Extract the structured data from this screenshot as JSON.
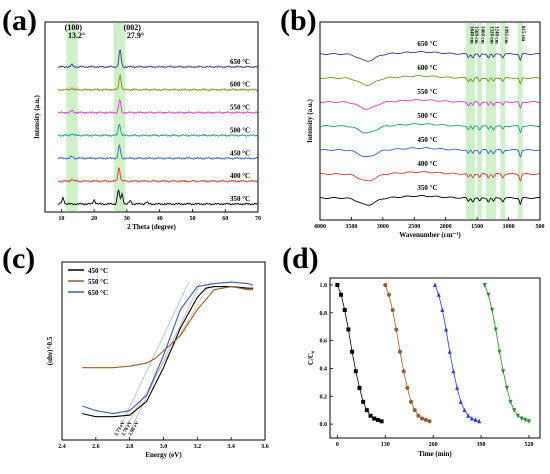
{
  "chart_data": [
    {
      "id": "a",
      "panel_label": "(a)",
      "type": "line",
      "xlabel": "2 Theta   (degree)",
      "ylabel": "Intensity (a.u.)",
      "xlim": [
        5,
        70
      ],
      "xticks": [
        10,
        20,
        30,
        40,
        50,
        60,
        70
      ],
      "highlights": [
        [
          11.5,
          15
        ],
        [
          26,
          29.5
        ]
      ],
      "peak_labels": [
        {
          "index": "(100)",
          "angle": "13.2°"
        },
        {
          "index": "(002)",
          "angle": "27.9°"
        }
      ],
      "series": [
        {
          "name": "350 °C",
          "color": "#000000",
          "peaks": [
            [
              10.5,
              6
            ],
            [
              20,
              4
            ],
            [
              27.4,
              14
            ],
            [
              28.5,
              10
            ],
            [
              31,
              3
            ],
            [
              36,
              2
            ]
          ]
        },
        {
          "name": "400 °C",
          "color": "#e8342e",
          "peaks": [
            [
              27.6,
              14
            ],
            [
              13.2,
              2
            ]
          ]
        },
        {
          "name": "450 °C",
          "color": "#3264c8",
          "peaks": [
            [
              27.7,
              13
            ],
            [
              13.2,
              2
            ]
          ]
        },
        {
          "name": "500 °C",
          "color": "#15a08a",
          "peaks": [
            [
              27.7,
              12
            ],
            [
              13.2,
              2
            ]
          ]
        },
        {
          "name": "550 °C",
          "color": "#e23ad8",
          "peaks": [
            [
              27.8,
              13
            ],
            [
              13.2,
              2
            ]
          ]
        },
        {
          "name": "600 °C",
          "color": "#8a8a10",
          "peaks": [
            [
              27.9,
              15
            ],
            [
              13.2,
              2
            ]
          ]
        },
        {
          "name": "650 °C",
          "color": "#3a3a9a",
          "peaks": [
            [
              27.9,
              17
            ],
            [
              13.2,
              2
            ]
          ]
        }
      ]
    },
    {
      "id": "b",
      "panel_label": "(b)",
      "type": "line",
      "xlabel": "Wavenumber (cm⁻¹)",
      "ylabel": "Intensity (a.u.)",
      "xlim": [
        4000,
        500
      ],
      "xticks": [
        4000,
        3500,
        3000,
        2500,
        2000,
        1500,
        1000,
        500
      ],
      "bands": [
        1640,
        1569,
        1460,
        1320,
        1240,
        1092,
        815
      ],
      "band_labels": [
        "1640 cm",
        "1569 cm",
        "1460 cm",
        "1320 cm",
        "1240 cm",
        "1092 cm",
        "815 cm"
      ],
      "series": [
        {
          "name": "350 °C",
          "color": "#000000"
        },
        {
          "name": "400 °C",
          "color": "#e8342e"
        },
        {
          "name": "450 °C",
          "color": "#3264c8"
        },
        {
          "name": "500 °C",
          "color": "#15a08a"
        },
        {
          "name": "550 °C",
          "color": "#e23ad8"
        },
        {
          "name": "600 °C",
          "color": "#6aa01e"
        },
        {
          "name": "650 °C",
          "color": "#3a3a9a"
        }
      ]
    },
    {
      "id": "c",
      "panel_label": "(c)",
      "type": "line",
      "xlabel": "Energy (eV)",
      "ylabel": "(αhν)^0.5",
      "xlim": [
        2.4,
        3.6
      ],
      "xticks": [
        2.4,
        2.6,
        2.8,
        3.0,
        3.2,
        3.4,
        3.6
      ],
      "gap_labels": [
        "2.73 eV",
        "2.76 eV",
        "2.80 eV"
      ],
      "series": [
        {
          "name": "450 °C",
          "color": "#000000",
          "x": [
            2.52,
            2.6,
            2.7,
            2.8,
            2.9,
            3.0,
            3.1,
            3.2,
            3.25,
            3.3,
            3.4,
            3.5,
            3.53
          ],
          "y": [
            0.12,
            0.1,
            0.1,
            0.11,
            0.2,
            0.42,
            0.68,
            0.88,
            0.94,
            0.95,
            0.95,
            0.94,
            0.94
          ]
        },
        {
          "name": "550 °C",
          "color": "#9a5a28",
          "x": [
            2.52,
            2.6,
            2.7,
            2.8,
            2.9,
            2.95,
            3.0,
            3.1,
            3.2,
            3.3,
            3.4,
            3.5,
            3.53
          ],
          "y": [
            0.42,
            0.42,
            0.42,
            0.43,
            0.45,
            0.48,
            0.53,
            0.63,
            0.8,
            0.93,
            0.95,
            0.93,
            0.93
          ]
        },
        {
          "name": "650 °C",
          "color": "#3a5ab8",
          "x": [
            2.52,
            2.6,
            2.7,
            2.8,
            2.9,
            3.0,
            3.1,
            3.2,
            3.3,
            3.4,
            3.5,
            3.53
          ],
          "y": [
            0.17,
            0.14,
            0.12,
            0.14,
            0.24,
            0.5,
            0.8,
            0.95,
            0.97,
            0.98,
            0.97,
            0.96
          ]
        }
      ]
    },
    {
      "id": "d",
      "panel_label": "(d)",
      "type": "line",
      "xlabel": "Time (min)",
      "ylabel": "C/C₀",
      "xlim": [
        -20,
        550
      ],
      "ylim": [
        -0.1,
        1.05
      ],
      "xticks": [
        0,
        130,
        260,
        390,
        520
      ],
      "yticks": [
        0.0,
        0.2,
        0.4,
        0.6,
        0.8,
        1.0
      ],
      "series": [
        {
          "color": "#000000",
          "marker": "square",
          "x": [
            0,
            10,
            20,
            30,
            40,
            50,
            60,
            70,
            80,
            90,
            100,
            110,
            120
          ],
          "y": [
            1.0,
            0.93,
            0.82,
            0.68,
            0.52,
            0.38,
            0.26,
            0.16,
            0.1,
            0.06,
            0.04,
            0.03,
            0.02
          ]
        },
        {
          "color": "#9a5a28",
          "marker": "circle",
          "x": [
            130,
            140,
            150,
            160,
            170,
            180,
            190,
            200,
            210,
            220,
            230,
            240,
            250
          ],
          "y": [
            1.0,
            0.93,
            0.82,
            0.68,
            0.52,
            0.38,
            0.26,
            0.16,
            0.1,
            0.06,
            0.04,
            0.03,
            0.02
          ]
        },
        {
          "color": "#2a3ad8",
          "marker": "triangle-up",
          "x": [
            265,
            275,
            285,
            295,
            305,
            315,
            325,
            335,
            345,
            355,
            365,
            375,
            385
          ],
          "y": [
            1.0,
            0.93,
            0.82,
            0.68,
            0.52,
            0.38,
            0.26,
            0.16,
            0.1,
            0.06,
            0.04,
            0.03,
            0.02
          ]
        },
        {
          "color": "#2a8a2a",
          "marker": "triangle-down",
          "x": [
            400,
            410,
            420,
            430,
            440,
            450,
            460,
            470,
            480,
            490,
            500,
            510,
            520
          ],
          "y": [
            1.0,
            0.93,
            0.82,
            0.68,
            0.52,
            0.38,
            0.26,
            0.16,
            0.1,
            0.06,
            0.04,
            0.03,
            0.02
          ]
        }
      ]
    }
  ]
}
